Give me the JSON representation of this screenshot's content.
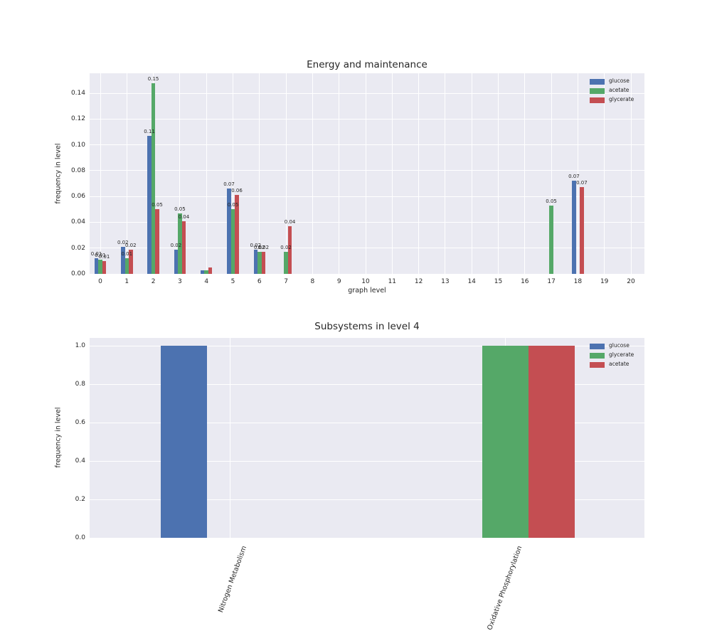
{
  "style": {
    "plot_bg": "#EAEAF2",
    "grid_color": "#FFFFFF",
    "text_color": "#262626",
    "series_colors": {
      "blue": "#4C72B0",
      "green": "#55A868",
      "red": "#C44E52"
    }
  },
  "chart_data": [
    {
      "type": "bar",
      "title": "Energy and maintenance",
      "xlabel": "graph level",
      "ylabel": "frequency in level",
      "categories": [
        0,
        1,
        2,
        3,
        4,
        5,
        6,
        7,
        8,
        9,
        10,
        11,
        12,
        13,
        14,
        15,
        16,
        17,
        18,
        19,
        20
      ],
      "xtick_labels": [
        "0",
        "1",
        "2",
        "3",
        "4",
        "5",
        "6",
        "7",
        "8",
        "9",
        "10",
        "11",
        "12",
        "13",
        "14",
        "15",
        "16",
        "17",
        "18",
        "19",
        "20"
      ],
      "yticks": [
        0,
        0.02,
        0.04,
        0.06,
        0.08,
        0.1,
        0.12,
        0.14
      ],
      "ytick_labels": [
        "0.00",
        "0.02",
        "0.04",
        "0.06",
        "0.08",
        "0.10",
        "0.12",
        "0.14"
      ],
      "ylim": [
        0,
        0.1555
      ],
      "grid": true,
      "legend_position": "upper right",
      "legend": [
        "glucose",
        "acetate",
        "glycerate"
      ],
      "series": [
        {
          "name": "glucose",
          "color": "#4C72B0",
          "values": [
            0.012,
            0.021,
            0.107,
            0.019,
            0.003,
            0.066,
            0.019,
            0,
            0,
            0,
            0,
            0,
            0,
            0,
            0,
            0,
            0,
            0,
            0.072,
            0,
            0
          ],
          "bar_labels": [
            "0.01",
            "0.02",
            "0.11",
            "0.02",
            "",
            "0.07",
            "0.02",
            "",
            "",
            "",
            "",
            "",
            "",
            "",
            "",
            "",
            "",
            "",
            "0.07",
            "",
            ""
          ]
        },
        {
          "name": "acetate",
          "color": "#55A868",
          "values": [
            0.011,
            0.012,
            0.148,
            0.047,
            0.003,
            0.05,
            0.017,
            0.017,
            0,
            0,
            0,
            0,
            0,
            0,
            0,
            0,
            0,
            0.053,
            0,
            0,
            0
          ],
          "bar_labels": [
            "0.01",
            "0.01",
            "0.15",
            "0.05",
            "",
            "0.05",
            "0.02",
            "0.02",
            "",
            "",
            "",
            "",
            "",
            "",
            "",
            "",
            "",
            "0.05",
            "",
            "",
            ""
          ]
        },
        {
          "name": "glycerate",
          "color": "#C44E52",
          "values": [
            0.01,
            0.019,
            0.05,
            0.041,
            0.005,
            0.061,
            0.017,
            0.037,
            0,
            0,
            0,
            0,
            0,
            0,
            0,
            0,
            0,
            0,
            0.067,
            0,
            0
          ],
          "bar_labels": [
            "0.01",
            "0.02",
            "0.05",
            "0.04",
            "",
            "0.06",
            "0.02",
            "0.04",
            "",
            "",
            "",
            "",
            "",
            "",
            "",
            "",
            "",
            "",
            "0.07",
            "",
            ""
          ]
        }
      ]
    },
    {
      "type": "bar",
      "title": "Subsystems in level 4",
      "xlabel": "",
      "ylabel": "frequency in level",
      "categories": [
        "Nitrogen Metabolism",
        "Oxidative Phosphorylation"
      ],
      "yticks": [
        0,
        0.2,
        0.4,
        0.6,
        0.8,
        1.0
      ],
      "ytick_labels": [
        "0.0",
        "0.2",
        "0.4",
        "0.6",
        "0.8",
        "1.0"
      ],
      "ylim": [
        0,
        1.041
      ],
      "grid": true,
      "legend_position": "upper right",
      "legend": [
        "glucose",
        "glycerate",
        "acetate"
      ],
      "series": [
        {
          "name": "glucose",
          "color": "#4C72B0",
          "values": [
            1.0,
            0
          ]
        },
        {
          "name": "glycerate",
          "color": "#55A868",
          "values": [
            0,
            1.0
          ]
        },
        {
          "name": "acetate",
          "color": "#C44E52",
          "values": [
            0,
            1.0
          ]
        }
      ]
    }
  ]
}
